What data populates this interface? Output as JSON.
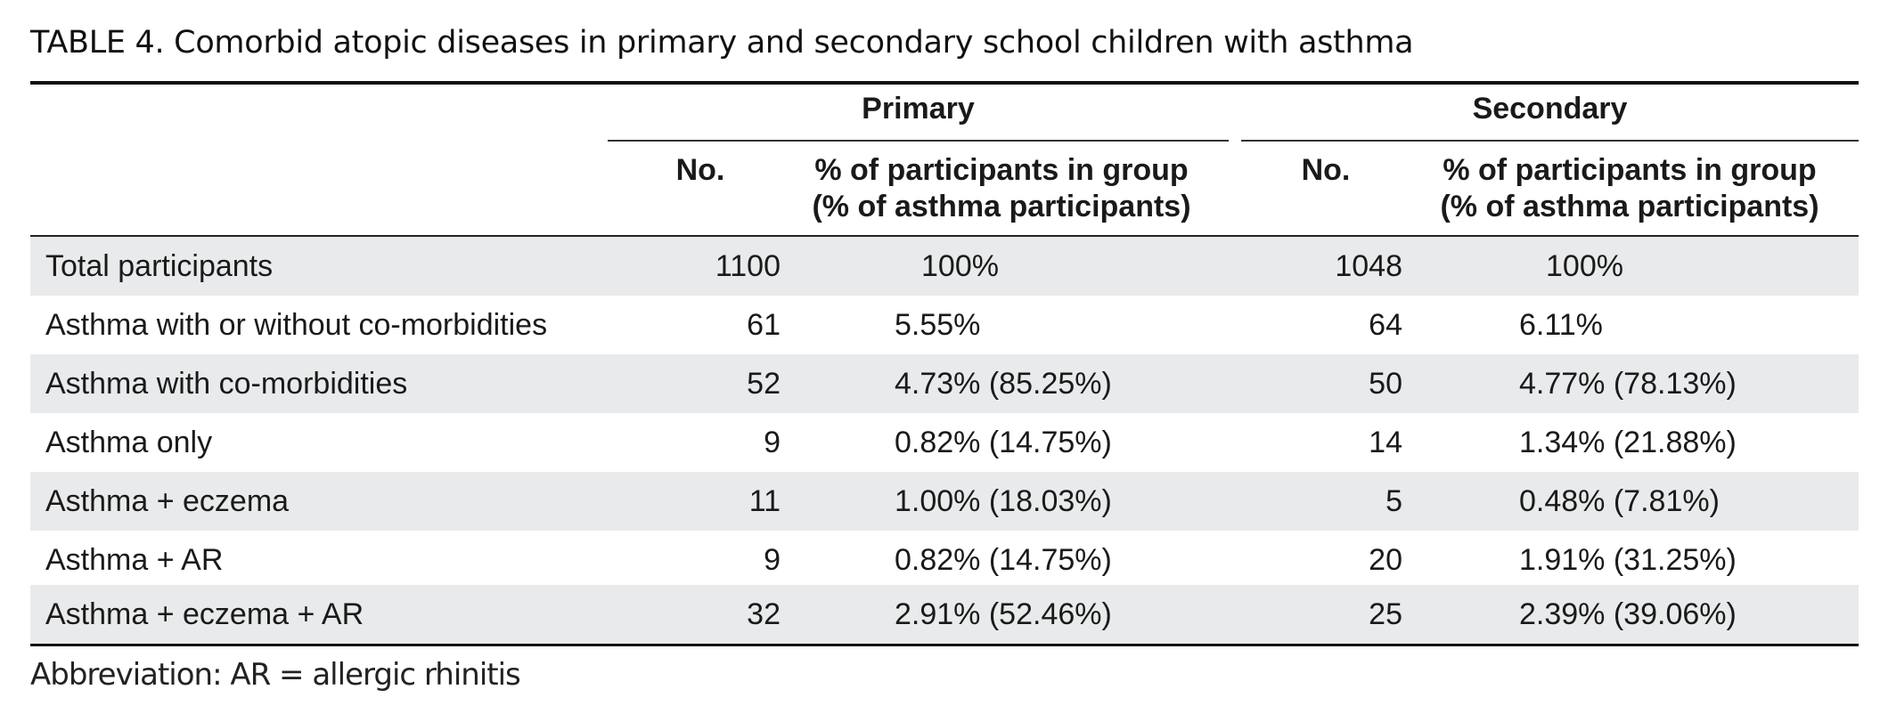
{
  "table": {
    "caption": "TABLE 4.  Comorbid atopic diseases in primary and secondary school children with asthma",
    "groups": {
      "primary": "Primary",
      "secondary": "Secondary"
    },
    "headers": {
      "no": "No.",
      "pct_line1": "% of participants in group",
      "pct_line2": "(% of asthma participants)"
    },
    "rows": [
      {
        "label": "Total participants",
        "primary_no": "1100",
        "primary_pct": "100%",
        "secondary_no": "1048",
        "secondary_pct": "100%"
      },
      {
        "label": "Asthma with or without co-morbidities",
        "primary_no": "61",
        "primary_pct": "5.55%",
        "secondary_no": "64",
        "secondary_pct": "6.11%"
      },
      {
        "label": "Asthma with co-morbidities",
        "primary_no": "52",
        "primary_pct": "4.73% (85.25%)",
        "secondary_no": "50",
        "secondary_pct": "4.77% (78.13%)"
      },
      {
        "label": "Asthma only",
        "primary_no": "9",
        "primary_pct": "0.82% (14.75%)",
        "secondary_no": "14",
        "secondary_pct": "1.34% (21.88%)"
      },
      {
        "label": "Asthma + eczema",
        "primary_no": "11",
        "primary_pct": "1.00% (18.03%)",
        "secondary_no": "5",
        "secondary_pct": "0.48% (7.81%)"
      },
      {
        "label": "Asthma + AR",
        "primary_no": "9",
        "primary_pct": "0.82% (14.75%)",
        "secondary_no": "20",
        "secondary_pct": "1.91% (31.25%)"
      },
      {
        "label": "Asthma + eczema + AR",
        "primary_no": "32",
        "primary_pct": "2.91% (52.46%)",
        "secondary_no": "25",
        "secondary_pct": "2.39% (39.06%)"
      }
    ],
    "footnote": "Abbreviation: AR = allergic rhinitis"
  }
}
